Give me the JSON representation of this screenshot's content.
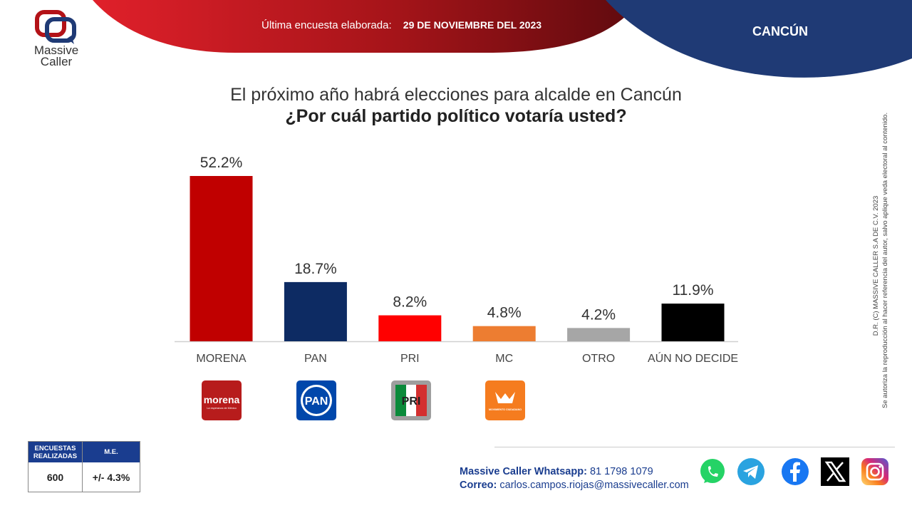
{
  "header": {
    "survey_label": "Última encuesta elaborada:",
    "survey_date": "29 DE NOVIEMBRE DEL 2023",
    "city": "CANCÚN"
  },
  "logo": {
    "line1": "Massive",
    "line2": "Caller"
  },
  "title": {
    "line1": "El próximo año habrá elecciones para alcalde en Cancún",
    "line2": "¿Por cuál partido político votaría usted?"
  },
  "chart_data": {
    "type": "bar",
    "categories": [
      "MORENA",
      "PAN",
      "PRI",
      "MC",
      "OTRO",
      "AÚN NO DECIDE"
    ],
    "values": [
      52.2,
      18.7,
      8.2,
      4.8,
      4.2,
      11.9
    ],
    "value_labels": [
      "52.2%",
      "18.7%",
      "8.2%",
      "4.8%",
      "4.2%",
      "11.9%"
    ],
    "colors": [
      "#c00000",
      "#0d2b63",
      "#ff0000",
      "#ed7d31",
      "#a6a6a6",
      "#000000"
    ],
    "ylim": [
      0,
      52.2
    ],
    "grid": false,
    "legend": "none"
  },
  "party_logos": [
    {
      "icon": "morena-logo-icon",
      "text": "morena",
      "sub": "La esperanza de México",
      "color": "#b71c1c"
    },
    {
      "icon": "pan-logo-icon",
      "text": "PAN",
      "color": "#0047ab"
    },
    {
      "icon": "pri-logo-icon",
      "text": "PRI"
    },
    {
      "icon": "mc-logo-icon",
      "text": "MOVIMIENTO CIUDADANO",
      "color": "#f57c1f"
    }
  ],
  "copyright": {
    "line1": "D.R. (C) MASSIVE CALLER S.A DE C.V. 2023",
    "line2": "Se autoriza la reproducción al hacer referencia del autor, salvo aplique veda electoral al contenido."
  },
  "stats": {
    "col1_header": "ENCUESTAS REALIZADAS",
    "col2_header": "M.E.",
    "col1_value": "600",
    "col2_value": "+/- 4.3%"
  },
  "contact": {
    "whatsapp_label": "Massive Caller Whatsapp:",
    "whatsapp_value": "81 1798 1079",
    "email_label": "Correo:",
    "email_value": "carlos.campos.riojas@massivecaller.com"
  },
  "social": [
    "whatsapp-icon",
    "telegram-icon",
    "facebook-icon",
    "x-icon",
    "instagram-icon"
  ],
  "colors": {
    "red_banner": "#b31217",
    "navy_banner": "#1f3a75",
    "accent_blue": "#1a3d8f"
  }
}
